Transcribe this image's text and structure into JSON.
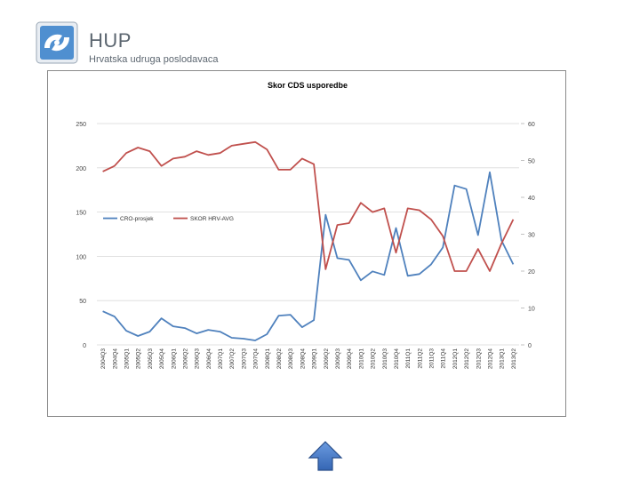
{
  "header": {
    "brand_name": "HUP",
    "brand_subtitle": "Hrvatska udruga poslodavaca",
    "logo_icon": "hup-logo-icon"
  },
  "navigation": {
    "up_icon": "arrow-up-icon",
    "color": "#4472c4"
  },
  "chart_data": {
    "type": "line",
    "title": "Skor CDS usporedbe",
    "x": [
      "2004Q3",
      "2004Q4",
      "2005Q1",
      "2005Q2",
      "2005Q3",
      "2005Q4",
      "2006Q1",
      "2006Q2",
      "2006Q3",
      "2006Q4",
      "2007Q1",
      "2007Q2",
      "2007Q3",
      "2007Q4",
      "2008Q1",
      "2008Q2",
      "2008Q3",
      "2008Q4",
      "2009Q1",
      "2009Q2",
      "2009Q3",
      "2009Q4",
      "2010Q1",
      "2010Q2",
      "2010Q3",
      "2010Q4",
      "2011Q1",
      "2011Q2",
      "2011Q3",
      "2011Q4",
      "2012Q1",
      "2012Q2",
      "2012Q3",
      "2012Q4",
      "2013Q1",
      "2013Q2"
    ],
    "left_axis": {
      "ylim": [
        0,
        250
      ],
      "ticks": [
        "0",
        "50",
        "100",
        "150",
        "200",
        "250"
      ]
    },
    "right_axis": {
      "ylim": [
        0,
        60
      ],
      "ticks": [
        "0",
        "10",
        "20",
        "30",
        "40",
        "50",
        "60"
      ]
    },
    "grid": true,
    "legend_position": "center-left",
    "series": [
      {
        "name": "CRO-prosjek",
        "axis": "left",
        "color": "#4f81bd",
        "values": [
          38,
          32,
          16,
          10,
          15,
          30,
          21,
          19,
          13,
          17,
          15,
          8,
          7,
          5,
          12,
          33,
          34,
          20,
          28,
          147,
          98,
          96,
          73,
          83,
          79,
          132,
          78,
          80,
          91,
          110,
          180,
          176,
          124,
          195,
          118,
          91
        ]
      },
      {
        "name": "SKOR HRV-AVG",
        "axis": "right",
        "color": "#c0504d",
        "values": [
          47,
          48.5,
          52,
          53.5,
          52.5,
          48.5,
          50.5,
          51,
          52.5,
          51.5,
          52,
          54,
          54.5,
          55,
          53,
          47.5,
          47.5,
          50.5,
          49,
          20.5,
          32.5,
          33,
          38.5,
          36,
          37,
          25,
          37,
          36.5,
          34,
          29.5,
          20,
          20,
          26,
          20,
          27.5,
          34
        ]
      }
    ]
  }
}
